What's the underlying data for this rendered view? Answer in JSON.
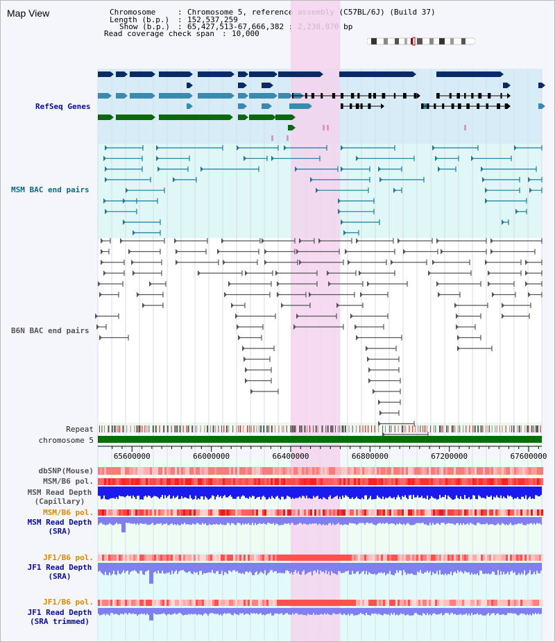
{
  "title": "Map View",
  "info": {
    "chromosome_label": "Chromosome",
    "chromosome_value": "Chromosome 5, reference assembly (C57BL/6J) (Build 37)",
    "length_label": "Length (b.p.)",
    "length_value": "152,537,259",
    "show_label": "Show (b.p.)",
    "show_value": "65,427,513-67,666,382 : 2,238,870 bp",
    "coverage_label": "Read coverage check span",
    "coverage_value": "10,000"
  },
  "tracks": {
    "refseq": "RefSeq Genes",
    "msm_bac": "MSM BAC end pairs",
    "b6n_bac": "B6N BAC end pairs",
    "repeat": "Repeat",
    "chromosome": "chromosome 5",
    "dbsnp": "dbSNP(Mouse)",
    "msm_b6_pol_1": "MSM/B6 pol.",
    "msm_depth_cap_1": "MSM Read Depth",
    "msm_depth_cap_2": "(Capillary)",
    "msm_b6_pol_2": "MSM/B6 pol.",
    "msm_depth_sra_1": "MSM Read Depth",
    "msm_depth_sra_2": "(SRA)",
    "jf1_b6_pol_1": "JF1/B6 pol.",
    "jf1_depth_sra_1": "JF1 Read Depth",
    "jf1_depth_sra_2": "(SRA)",
    "jf1_b6_pol_2": "JF1/B6 pol.",
    "jf1_depth_trim_1": "JF1 Read Depth",
    "jf1_depth_trim_2": "(SRA trimmed)"
  },
  "axis": {
    "ticks": [
      "65600000",
      "66000000",
      "66400000",
      "66800000",
      "67200000",
      "67600000"
    ],
    "tick_values": [
      65600000,
      66000000,
      66400000,
      66800000,
      67200000,
      67600000
    ],
    "range": [
      65427513,
      67666382
    ]
  },
  "highlight": {
    "start": 66400000,
    "end": 66650000,
    "color": "#f5d4ee"
  },
  "colors": {
    "refseq_navy": "#0a2a66",
    "refseq_teal": "#3a8ab0",
    "refseq_green": "#0a6a0a",
    "refseq_bg": "#d8ecf8",
    "msm_bac": "#1a7a9a",
    "msm_bg": "#dff7f7",
    "b6n_bac": "#555555",
    "chromosome": "#007000",
    "depth_blue": "#1a1aee",
    "depth_light": "#7f7ff0"
  }
}
